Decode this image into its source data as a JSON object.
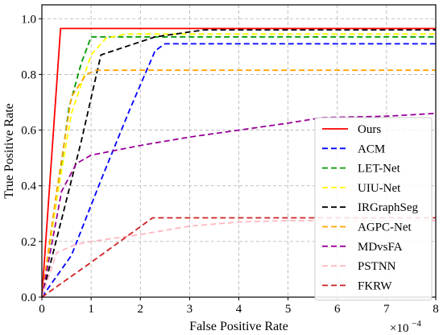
{
  "chart_data": {
    "type": "line",
    "xlabel": "False Positive Rate",
    "ylabel": "True Positive Rate",
    "x_scale_label": "×10",
    "x_scale_exponent": "−4",
    "xlim": [
      0,
      8
    ],
    "ylim": [
      0,
      1.05
    ],
    "xticks": [
      "0",
      "1",
      "2",
      "3",
      "4",
      "5",
      "6",
      "7",
      "8"
    ],
    "yticks": [
      "0.0",
      "0.2",
      "0.4",
      "0.6",
      "0.8",
      "1.0"
    ],
    "grid": true,
    "legend_position": "right",
    "series": [
      {
        "name": "Ours",
        "color": "#ff0000",
        "dash": "solid",
        "points": [
          [
            0,
            0
          ],
          [
            0.38,
            0.965
          ],
          [
            8,
            0.965
          ]
        ]
      },
      {
        "name": "ACM",
        "color": "#0000ff",
        "dash": "dashed",
        "points": [
          [
            0,
            0
          ],
          [
            0.6,
            0.15
          ],
          [
            1.2,
            0.42
          ],
          [
            1.8,
            0.68
          ],
          [
            2.3,
            0.885
          ],
          [
            2.5,
            0.91
          ],
          [
            8,
            0.91
          ]
        ]
      },
      {
        "name": "LET-Net",
        "color": "#009900",
        "dash": "dashed",
        "points": [
          [
            0,
            0
          ],
          [
            0.3,
            0.35
          ],
          [
            0.55,
            0.68
          ],
          [
            0.8,
            0.84
          ],
          [
            1.0,
            0.935
          ],
          [
            8,
            0.935
          ]
        ]
      },
      {
        "name": "UIU-Net",
        "color": "#ffff00",
        "dash": "dashed",
        "points": [
          [
            0,
            0
          ],
          [
            0.3,
            0.35
          ],
          [
            0.6,
            0.66
          ],
          [
            1.0,
            0.87
          ],
          [
            1.3,
            0.93
          ],
          [
            1.7,
            0.945
          ],
          [
            8,
            0.945
          ]
        ]
      },
      {
        "name": "IRGraphSeg",
        "color": "#000000",
        "dash": "dashed",
        "points": [
          [
            0,
            0
          ],
          [
            0.4,
            0.28
          ],
          [
            0.8,
            0.56
          ],
          [
            1.2,
            0.87
          ],
          [
            2.3,
            0.935
          ],
          [
            3.3,
            0.96
          ],
          [
            8,
            0.96
          ]
        ]
      },
      {
        "name": "AGPC-Net",
        "color": "#ffa500",
        "dash": "dashed",
        "points": [
          [
            0,
            0
          ],
          [
            0.3,
            0.38
          ],
          [
            0.6,
            0.72
          ],
          [
            0.9,
            0.8
          ],
          [
            1.1,
            0.815
          ],
          [
            8,
            0.815
          ]
        ]
      },
      {
        "name": "MDvsFA",
        "color": "#990099",
        "dash": "dashed",
        "points": [
          [
            0,
            0
          ],
          [
            0.4,
            0.38
          ],
          [
            0.7,
            0.48
          ],
          [
            1.0,
            0.51
          ],
          [
            2.0,
            0.545
          ],
          [
            3.0,
            0.575
          ],
          [
            4.0,
            0.6
          ],
          [
            5.0,
            0.625
          ],
          [
            5.7,
            0.645
          ],
          [
            7.0,
            0.65
          ],
          [
            8,
            0.66
          ]
        ]
      },
      {
        "name": "PSTNN",
        "color": "#ffb6c1",
        "dash": "dashed",
        "points": [
          [
            0,
            0
          ],
          [
            0.3,
            0.16
          ],
          [
            0.7,
            0.19
          ],
          [
            1.0,
            0.2
          ],
          [
            2.0,
            0.225
          ],
          [
            3.0,
            0.255
          ],
          [
            4.0,
            0.27
          ],
          [
            5.0,
            0.275
          ],
          [
            6.0,
            0.275
          ],
          [
            8,
            0.275
          ]
        ]
      },
      {
        "name": "FKRW",
        "color": "#cc2222",
        "dash": "dashed",
        "points": [
          [
            0,
            0
          ],
          [
            1.0,
            0.125
          ],
          [
            2.25,
            0.285
          ],
          [
            8,
            0.285
          ]
        ]
      }
    ]
  }
}
